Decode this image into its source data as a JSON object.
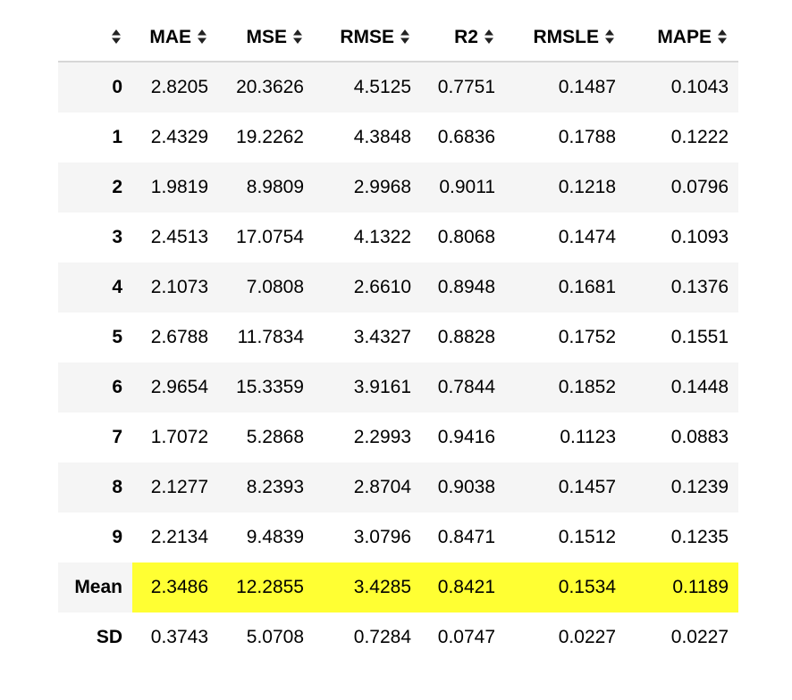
{
  "table": {
    "colors": {
      "highlight": "#ffff33",
      "stripe": "#f5f5f5",
      "header_border": "#d6d6d6"
    },
    "headers": [
      "",
      "MAE",
      "MSE",
      "RMSE",
      "R2",
      "RMSLE",
      "MAPE"
    ],
    "sort_icon": "sort-arrows-icon",
    "rows": [
      {
        "index": "0",
        "values": [
          "2.8205",
          "20.3626",
          "4.5125",
          "0.7751",
          "0.1487",
          "0.1043"
        ]
      },
      {
        "index": "1",
        "values": [
          "2.4329",
          "19.2262",
          "4.3848",
          "0.6836",
          "0.1788",
          "0.1222"
        ]
      },
      {
        "index": "2",
        "values": [
          "1.9819",
          "8.9809",
          "2.9968",
          "0.9011",
          "0.1218",
          "0.0796"
        ]
      },
      {
        "index": "3",
        "values": [
          "2.4513",
          "17.0754",
          "4.1322",
          "0.8068",
          "0.1474",
          "0.1093"
        ]
      },
      {
        "index": "4",
        "values": [
          "2.1073",
          "7.0808",
          "2.6610",
          "0.8948",
          "0.1681",
          "0.1376"
        ]
      },
      {
        "index": "5",
        "values": [
          "2.6788",
          "11.7834",
          "3.4327",
          "0.8828",
          "0.1752",
          "0.1551"
        ]
      },
      {
        "index": "6",
        "values": [
          "2.9654",
          "15.3359",
          "3.9161",
          "0.7844",
          "0.1852",
          "0.1448"
        ]
      },
      {
        "index": "7",
        "values": [
          "1.7072",
          "5.2868",
          "2.2993",
          "0.9416",
          "0.1123",
          "0.0883"
        ]
      },
      {
        "index": "8",
        "values": [
          "2.1277",
          "8.2393",
          "2.8704",
          "0.9038",
          "0.1457",
          "0.1239"
        ]
      },
      {
        "index": "9",
        "values": [
          "2.2134",
          "9.4839",
          "3.0796",
          "0.8471",
          "0.1512",
          "0.1235"
        ]
      },
      {
        "index": "Mean",
        "values": [
          "2.3486",
          "12.2855",
          "3.4285",
          "0.8421",
          "0.1534",
          "0.1189"
        ],
        "highlight": true
      },
      {
        "index": "SD",
        "values": [
          "0.3743",
          "5.0708",
          "0.7284",
          "0.0747",
          "0.0227",
          "0.0227"
        ]
      }
    ]
  }
}
